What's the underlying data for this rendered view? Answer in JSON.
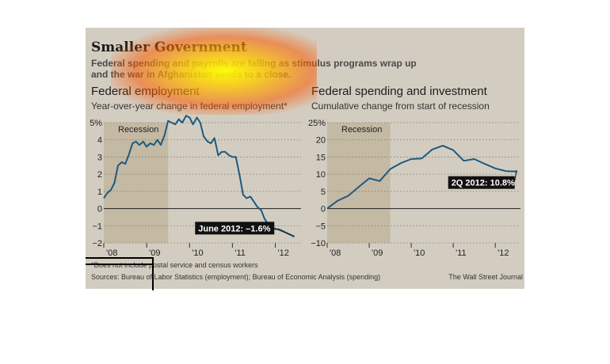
{
  "title": "Smaller Government",
  "subtitle_line1": "Federal spending and payrolls are falling as stimulus programs wrap up",
  "subtitle_line2": "and the war in Afghanistan winds to a close.",
  "footnote": "*Does not include postal service and census workers",
  "sources": "Sources: Bureau of Labor Statistics (employment); Bureau of Economic Analysis (spending)",
  "credit": "The Wall Street Journal",
  "colors": {
    "line": "#1d5a80",
    "recession": "#c4b9a3",
    "panel": "#d3cdc1",
    "callout": "#111111"
  },
  "chart_data": [
    {
      "type": "line",
      "title": "Federal employment",
      "subtitle": "Year-over-year change in federal employment*",
      "x_ticks": [
        "'08",
        "'09",
        "'10",
        "'11",
        "'12"
      ],
      "y_ticks": [
        "5%",
        "4",
        "3",
        "2",
        "1",
        "0",
        "−1",
        "−2"
      ],
      "ylim": [
        -2,
        5
      ],
      "xlim": [
        2008.0,
        2012.6
      ],
      "recession": {
        "label": "Recession",
        "start": 2008.0,
        "end": 2009.5
      },
      "callout": "June 2012: –1.6%",
      "series": [
        {
          "x": [
            2008.0,
            2008.08,
            2008.17,
            2008.25,
            2008.33,
            2008.42,
            2008.5,
            2008.58,
            2008.67,
            2008.75,
            2008.83,
            2008.92,
            2009.0,
            2009.08,
            2009.17,
            2009.25,
            2009.33,
            2009.42,
            2009.5,
            2009.58,
            2009.67,
            2009.75,
            2009.83,
            2009.92,
            2010.0,
            2010.08,
            2010.17,
            2010.25,
            2010.33,
            2010.42,
            2010.5,
            2010.58,
            2010.67,
            2010.75,
            2010.83,
            2010.92,
            2011.0,
            2011.08,
            2011.17,
            2011.25,
            2011.33,
            2011.42,
            2011.5,
            2011.58,
            2011.67,
            2011.75,
            2011.83,
            2011.92,
            2012.0,
            2012.08,
            2012.17,
            2012.25,
            2012.33,
            2012.42
          ],
          "y": [
            0.6,
            0.9,
            1.1,
            1.5,
            2.5,
            2.7,
            2.6,
            3.1,
            3.8,
            3.9,
            3.7,
            3.9,
            3.6,
            3.8,
            3.7,
            4.0,
            3.7,
            4.3,
            5.1,
            5.0,
            4.9,
            5.2,
            5.0,
            5.4,
            5.3,
            4.9,
            5.3,
            5.0,
            4.2,
            3.9,
            3.8,
            4.1,
            3.1,
            3.3,
            3.3,
            3.1,
            3.0,
            3.0,
            1.9,
            0.8,
            0.6,
            0.7,
            0.4,
            0.1,
            -0.1,
            -0.6,
            -0.9,
            -1.1,
            -1.2,
            -1.2,
            -1.3,
            -1.4,
            -1.5,
            -1.6
          ]
        }
      ]
    },
    {
      "type": "line",
      "title": "Federal spending and investment",
      "subtitle": "Cumulative change from start of recession",
      "x_ticks": [
        "'08",
        "'09",
        "'10",
        "'11",
        "'12"
      ],
      "y_ticks": [
        "25%",
        "20",
        "15",
        "10",
        "5",
        "0",
        "−5",
        "−10"
      ],
      "ylim": [
        -10,
        25
      ],
      "xlim": [
        2008.0,
        2012.6
      ],
      "recession": {
        "label": "Recession",
        "start": 2008.0,
        "end": 2009.5
      },
      "callout": "2Q 2012: 10.8%",
      "series": [
        {
          "x": [
            2008.0,
            2008.25,
            2008.5,
            2008.75,
            2009.0,
            2009.25,
            2009.5,
            2009.75,
            2010.0,
            2010.25,
            2010.5,
            2010.75,
            2011.0,
            2011.25,
            2011.5,
            2011.75,
            2012.0,
            2012.25,
            2012.5
          ],
          "y": [
            0.0,
            2.3,
            3.7,
            6.3,
            8.8,
            8.0,
            11.5,
            13.2,
            14.4,
            14.6,
            17.2,
            18.3,
            17.0,
            13.9,
            14.4,
            13.0,
            11.7,
            10.9,
            10.8
          ]
        }
      ]
    }
  ]
}
